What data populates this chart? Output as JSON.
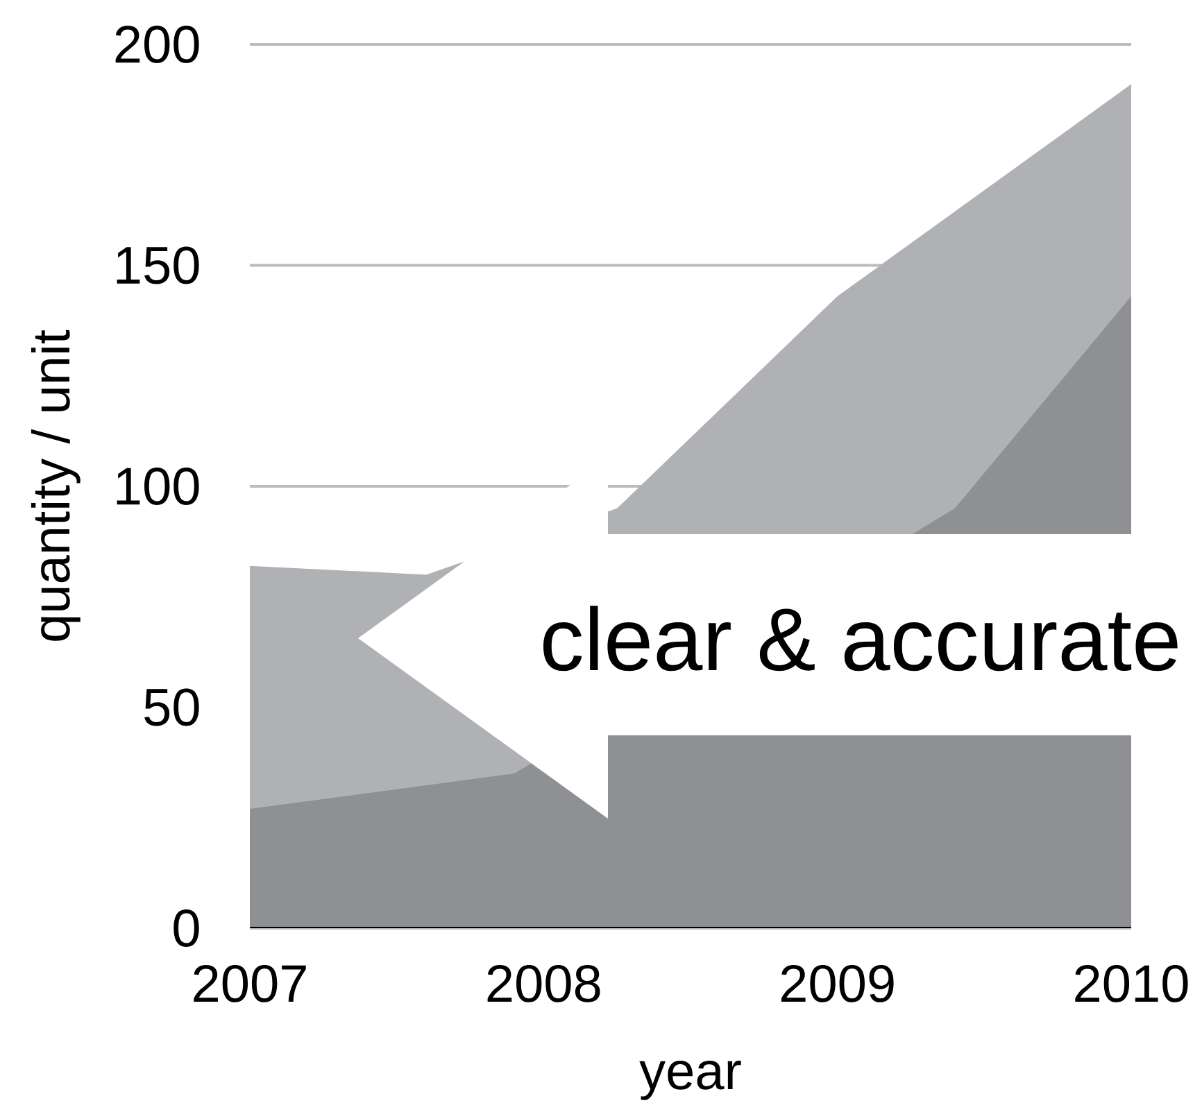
{
  "chart_data": {
    "type": "area",
    "xlabel": "year",
    "ylabel": "quantity / unit",
    "xlim": [
      2007,
      2010
    ],
    "xticks": [
      2007,
      2008,
      2009,
      2010
    ],
    "ylim": [
      0,
      200
    ],
    "yticks": [
      0,
      50,
      100,
      150,
      200
    ],
    "grid": "y",
    "series": [
      {
        "color": "#b0b1b4",
        "x": [
          2007,
          2007.6,
          2008.25,
          2009,
          2010
        ],
        "values": [
          82,
          80,
          95,
          143,
          191
        ]
      },
      {
        "color": "#8e9094",
        "x": [
          2007,
          2007.9,
          2009.4,
          2010
        ],
        "values": [
          27,
          35,
          95,
          143
        ]
      }
    ],
    "annotations": [
      "clear & accurate"
    ]
  }
}
